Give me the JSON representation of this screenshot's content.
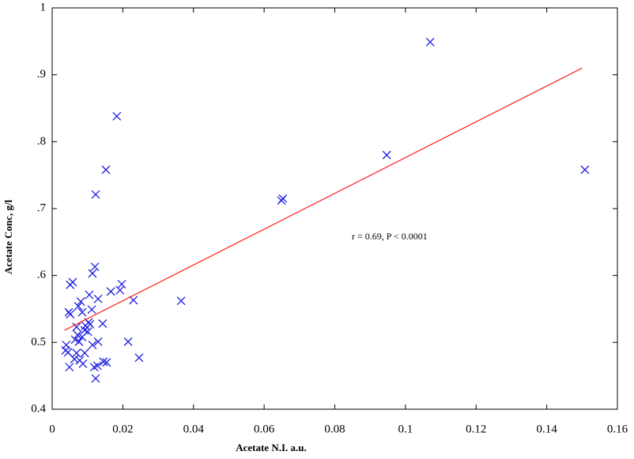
{
  "chart_data": {
    "type": "scatter",
    "x_label": "Acetate N.I. a.u.",
    "y_label": "Acetate Conc, g/l",
    "annotation": "r = 0.69, P < 0.0001",
    "xlim": [
      0,
      0.16
    ],
    "ylim": [
      0.4,
      1
    ],
    "xticks": [
      0,
      0.02,
      0.04,
      0.06,
      0.08,
      0.1,
      0.12,
      0.14,
      0.16
    ],
    "yticks": [
      0.4,
      0.5,
      {
        "value": 0.6,
        "label": ".6"
      },
      {
        "value": 0.7,
        "label": ".7"
      },
      {
        "value": 0.8,
        "label": ".8"
      },
      {
        "value": 0.9,
        "label": ".9"
      },
      1
    ],
    "series": [
      {
        "color": "#1f1fe0",
        "x": [
          0.107,
          0.0947,
          0.1508,
          0.0183,
          0.0152,
          0.0123,
          0.0649,
          0.0653,
          0.0121,
          0.0114,
          0.0058,
          0.0051,
          0.0197,
          0.0192,
          0.0166,
          0.0105,
          0.013,
          0.023,
          0.0365,
          0.0081,
          0.0074,
          0.0047,
          0.0112,
          0.0085,
          0.0051,
          0.0143,
          0.0103,
          0.0107,
          0.0094,
          0.0069,
          0.0092,
          0.0101,
          0.0072,
          0.0085,
          0.0065,
          0.0076,
          0.013,
          0.0215,
          0.004,
          0.0114,
          0.0038,
          0.0069,
          0.0092,
          0.0045,
          0.0246,
          0.0063,
          0.0078,
          0.0145,
          0.0154,
          0.0128,
          0.0087,
          0.0049,
          0.0119,
          0.0123
        ],
        "values": [
          0.949,
          0.78,
          0.758,
          0.838,
          0.758,
          0.721,
          0.712,
          0.715,
          0.613,
          0.603,
          0.59,
          0.586,
          0.587,
          0.578,
          0.576,
          0.571,
          0.565,
          0.563,
          0.562,
          0.561,
          0.554,
          0.545,
          0.549,
          0.545,
          0.542,
          0.528,
          0.53,
          0.527,
          0.525,
          0.523,
          0.518,
          0.516,
          0.511,
          0.508,
          0.504,
          0.501,
          0.501,
          0.501,
          0.496,
          0.496,
          0.488,
          0.484,
          0.484,
          0.485,
          0.477,
          0.475,
          0.473,
          0.471,
          0.47,
          0.465,
          0.468,
          0.463,
          0.463,
          0.446
        ]
      }
    ],
    "fit": {
      "color": "#ff2020",
      "x": [
        0.0035,
        0.15
      ],
      "values": [
        0.518,
        0.91
      ]
    }
  }
}
